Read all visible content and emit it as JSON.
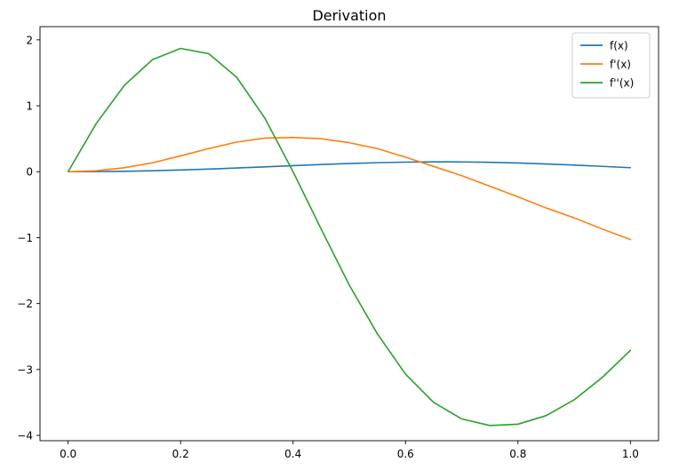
{
  "chart_data": {
    "type": "line",
    "title": "Derivation",
    "xlabel": "",
    "ylabel": "",
    "xlim": [
      -0.05,
      1.05
    ],
    "ylim": [
      -4.08,
      2.2
    ],
    "xticks": [
      0.0,
      0.2,
      0.4,
      0.6,
      0.8,
      1.0
    ],
    "xtick_labels": [
      "0.0",
      "0.2",
      "0.4",
      "0.6",
      "0.8",
      "1.0"
    ],
    "yticks": [
      -4,
      -3,
      -2,
      -1,
      0,
      1,
      2
    ],
    "ytick_labels": [
      "−4",
      "−3",
      "−2",
      "−1",
      "0",
      "1",
      "2"
    ],
    "grid": false,
    "legend_position": "top-right",
    "x": [
      0.0,
      0.05,
      0.1,
      0.15,
      0.2,
      0.25,
      0.3,
      0.35,
      0.4,
      0.45,
      0.5,
      0.55,
      0.6,
      0.65,
      0.7,
      0.75,
      0.8,
      0.85,
      0.9,
      0.95,
      1.0
    ],
    "series": [
      {
        "name": "f(x)",
        "color": "#1f77b4",
        "values": [
          0.0,
          0.0016,
          0.0065,
          0.0147,
          0.0259,
          0.0398,
          0.0559,
          0.0734,
          0.0913,
          0.1085,
          0.1239,
          0.1364,
          0.145,
          0.149,
          0.1481,
          0.1423,
          0.1318,
          0.1175,
          0.1002,
          0.081,
          0.0607
        ]
      },
      {
        "name": "f'(x)",
        "color": "#ff7f0e",
        "values": [
          0.0,
          0.015,
          0.06,
          0.135,
          0.24,
          0.35,
          0.45,
          0.51,
          0.52,
          0.5,
          0.44,
          0.35,
          0.22,
          0.08,
          -0.06,
          -0.22,
          -0.38,
          -0.55,
          -0.7,
          -0.87,
          -1.03
        ]
      },
      {
        "name": "f''(x)",
        "color": "#2ca02c",
        "values": [
          0.0,
          0.73,
          1.31,
          1.7,
          1.87,
          1.79,
          1.43,
          0.81,
          0.0,
          -0.87,
          -1.72,
          -2.46,
          -3.07,
          -3.5,
          -3.75,
          -3.85,
          -3.83,
          -3.7,
          -3.46,
          -3.12,
          -2.71
        ]
      }
    ]
  }
}
